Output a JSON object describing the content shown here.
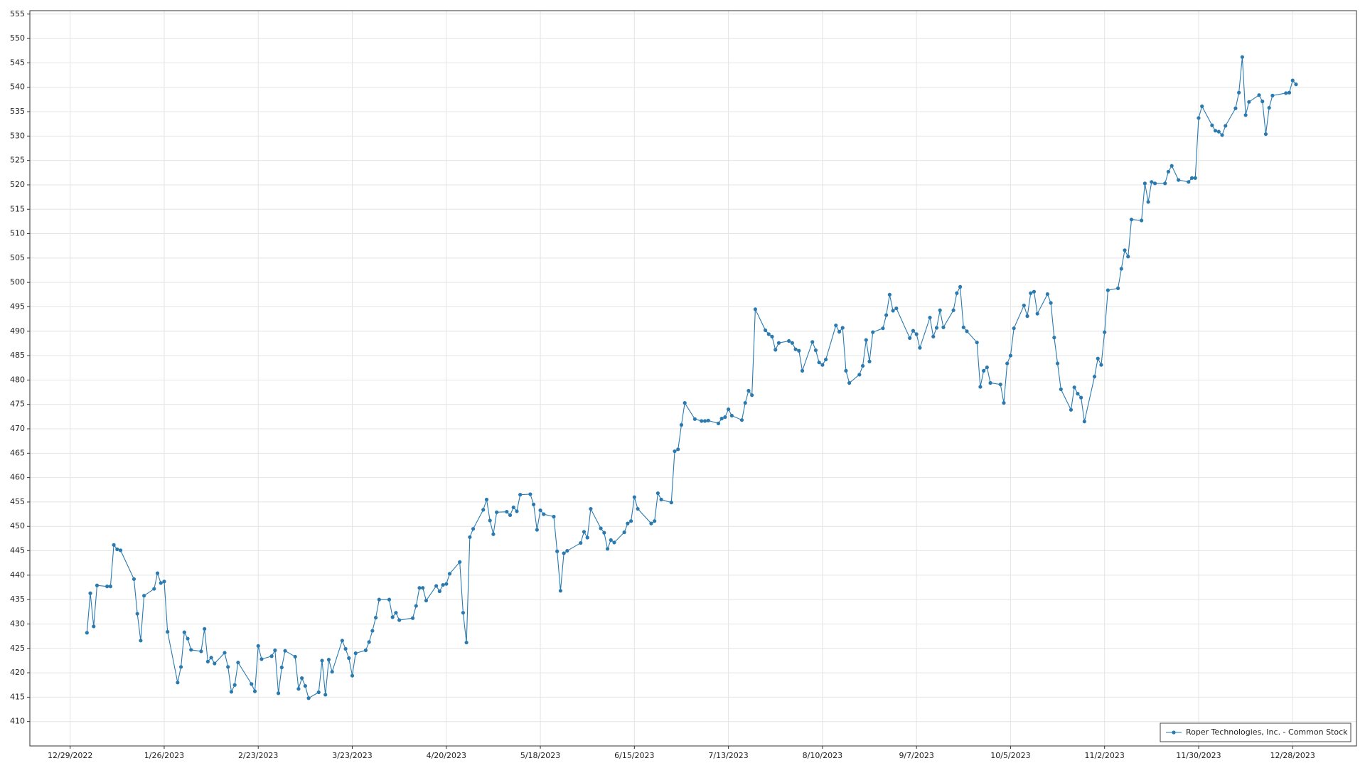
{
  "chart_data": {
    "type": "line",
    "series": [
      {
        "name": "Roper Technologies, Inc. - Common Stock",
        "color": "#2a7ab0",
        "x": [
          "1/3/2023",
          "1/4/2023",
          "1/5/2023",
          "1/6/2023",
          "1/9/2023",
          "1/10/2023",
          "1/11/2023",
          "1/12/2023",
          "1/13/2023",
          "1/17/2023",
          "1/18/2023",
          "1/19/2023",
          "1/20/2023",
          "1/23/2023",
          "1/24/2023",
          "1/25/2023",
          "1/26/2023",
          "1/27/2023",
          "1/30/2023",
          "1/31/2023",
          "2/1/2023",
          "2/2/2023",
          "2/3/2023",
          "2/6/2023",
          "2/7/2023",
          "2/8/2023",
          "2/9/2023",
          "2/10/2023",
          "2/13/2023",
          "2/14/2023",
          "2/15/2023",
          "2/16/2023",
          "2/17/2023",
          "2/21/2023",
          "2/22/2023",
          "2/23/2023",
          "2/24/2023",
          "2/27/2023",
          "2/28/2023",
          "3/1/2023",
          "3/2/2023",
          "3/3/2023",
          "3/6/2023",
          "3/7/2023",
          "3/8/2023",
          "3/9/2023",
          "3/10/2023",
          "3/13/2023",
          "3/14/2023",
          "3/15/2023",
          "3/16/2023",
          "3/17/2023",
          "3/20/2023",
          "3/21/2023",
          "3/22/2023",
          "3/23/2023",
          "3/24/2023",
          "3/27/2023",
          "3/28/2023",
          "3/29/2023",
          "3/30/2023",
          "3/31/2023",
          "4/3/2023",
          "4/4/2023",
          "4/5/2023",
          "4/6/2023",
          "4/10/2023",
          "4/11/2023",
          "4/12/2023",
          "4/13/2023",
          "4/14/2023",
          "4/17/2023",
          "4/18/2023",
          "4/19/2023",
          "4/20/2023",
          "4/21/2023",
          "4/24/2023",
          "4/25/2023",
          "4/26/2023",
          "4/27/2023",
          "4/28/2023",
          "5/1/2023",
          "5/2/2023",
          "5/3/2023",
          "5/4/2023",
          "5/5/2023",
          "5/8/2023",
          "5/9/2023",
          "5/10/2023",
          "5/11/2023",
          "5/12/2023",
          "5/15/2023",
          "5/16/2023",
          "5/17/2023",
          "5/18/2023",
          "5/19/2023",
          "5/22/2023",
          "5/23/2023",
          "5/24/2023",
          "5/25/2023",
          "5/26/2023",
          "5/30/2023",
          "5/31/2023",
          "6/1/2023",
          "6/2/2023",
          "6/5/2023",
          "6/6/2023",
          "6/7/2023",
          "6/8/2023",
          "6/9/2023",
          "6/12/2023",
          "6/13/2023",
          "6/14/2023",
          "6/15/2023",
          "6/16/2023",
          "6/20/2023",
          "6/21/2023",
          "6/22/2023",
          "6/23/2023",
          "6/26/2023",
          "6/27/2023",
          "6/28/2023",
          "6/29/2023",
          "6/30/2023",
          "7/3/2023",
          "7/5/2023",
          "7/6/2023",
          "7/7/2023",
          "7/10/2023",
          "7/11/2023",
          "7/12/2023",
          "7/13/2023",
          "7/14/2023",
          "7/17/2023",
          "7/18/2023",
          "7/19/2023",
          "7/20/2023",
          "7/21/2023",
          "7/24/2023",
          "7/25/2023",
          "7/26/2023",
          "7/27/2023",
          "7/28/2023",
          "7/31/2023",
          "8/1/2023",
          "8/2/2023",
          "8/3/2023",
          "8/4/2023",
          "8/7/2023",
          "8/8/2023",
          "8/9/2023",
          "8/10/2023",
          "8/11/2023",
          "8/14/2023",
          "8/15/2023",
          "8/16/2023",
          "8/17/2023",
          "8/18/2023",
          "8/21/2023",
          "8/22/2023",
          "8/23/2023",
          "8/24/2023",
          "8/25/2023",
          "8/28/2023",
          "8/29/2023",
          "8/30/2023",
          "8/31/2023",
          "9/1/2023",
          "9/5/2023",
          "9/6/2023",
          "9/7/2023",
          "9/8/2023",
          "9/11/2023",
          "9/12/2023",
          "9/13/2023",
          "9/14/2023",
          "9/15/2023",
          "9/18/2023",
          "9/19/2023",
          "9/20/2023",
          "9/21/2023",
          "9/22/2023",
          "9/25/2023",
          "9/26/2023",
          "9/27/2023",
          "9/28/2023",
          "9/29/2023",
          "10/2/2023",
          "10/3/2023",
          "10/4/2023",
          "10/5/2023",
          "10/6/2023",
          "10/9/2023",
          "10/10/2023",
          "10/11/2023",
          "10/12/2023",
          "10/13/2023",
          "10/16/2023",
          "10/17/2023",
          "10/18/2023",
          "10/19/2023",
          "10/20/2023",
          "10/23/2023",
          "10/24/2023",
          "10/25/2023",
          "10/26/2023",
          "10/27/2023",
          "10/30/2023",
          "10/31/2023",
          "11/1/2023",
          "11/2/2023",
          "11/3/2023",
          "11/6/2023",
          "11/7/2023",
          "11/8/2023",
          "11/9/2023",
          "11/10/2023",
          "11/13/2023",
          "11/14/2023",
          "11/15/2023",
          "11/16/2023",
          "11/17/2023",
          "11/20/2023",
          "11/21/2023",
          "11/22/2023",
          "11/24/2023",
          "11/27/2023",
          "11/28/2023",
          "11/29/2023",
          "11/30/2023",
          "12/1/2023",
          "12/4/2023",
          "12/5/2023",
          "12/6/2023",
          "12/7/2023",
          "12/8/2023",
          "12/11/2023",
          "12/12/2023",
          "12/13/2023",
          "12/14/2023",
          "12/15/2023",
          "12/18/2023",
          "12/19/2023",
          "12/20/2023",
          "12/21/2023",
          "12/22/2023",
          "12/26/2023",
          "12/27/2023",
          "12/28/2023",
          "12/29/2023"
        ],
        "values": [
          428.2,
          436.3,
          429.5,
          437.9,
          437.7,
          437.7,
          446.2,
          445.3,
          445.1,
          439.2,
          432.1,
          426.6,
          435.8,
          437.2,
          440.4,
          438.4,
          438.7,
          428.4,
          418.0,
          421.2,
          428.3,
          427.0,
          424.7,
          424.4,
          429.0,
          422.3,
          423.1,
          421.9,
          424.1,
          421.2,
          416.1,
          417.5,
          422.1,
          417.7,
          416.2,
          425.5,
          422.8,
          423.4,
          424.6,
          415.8,
          421.1,
          424.5,
          423.3,
          416.7,
          418.9,
          417.3,
          414.8,
          416.0,
          422.5,
          415.5,
          422.7,
          420.2,
          426.6,
          424.9,
          423.0,
          419.4,
          424.0,
          424.6,
          426.3,
          428.6,
          431.3,
          435.0,
          435.0,
          431.4,
          432.3,
          430.8,
          431.2,
          433.7,
          437.4,
          437.4,
          434.8,
          437.8,
          436.7,
          438.0,
          438.2,
          440.3,
          442.7,
          432.3,
          426.2,
          447.8,
          449.5,
          453.4,
          455.5,
          451.2,
          448.4,
          452.9,
          453.0,
          452.3,
          453.9,
          453.1,
          456.5,
          456.6,
          454.5,
          449.3,
          453.3,
          452.5,
          452.0,
          444.9,
          436.8,
          444.5,
          445.0,
          446.6,
          448.9,
          447.7,
          453.6,
          449.6,
          448.7,
          445.4,
          447.2,
          446.7,
          448.8,
          450.6,
          451.1,
          456.0,
          453.6,
          450.6,
          451.1,
          456.8,
          455.5,
          454.9,
          465.4,
          465.8,
          470.8,
          475.3,
          472.0,
          471.6,
          471.6,
          471.7,
          471.1,
          472.1,
          472.4,
          474.0,
          472.7,
          471.8,
          475.3,
          477.8,
          476.9,
          494.5,
          490.2,
          489.4,
          488.9,
          486.2,
          487.6,
          488.0,
          487.6,
          486.3,
          486.0,
          481.9,
          487.8,
          486.1,
          483.6,
          483.1,
          484.2,
          491.2,
          489.9,
          490.7,
          481.9,
          479.4,
          481.1,
          482.9,
          488.2,
          483.8,
          489.8,
          490.6,
          493.3,
          497.5,
          494.2,
          494.7,
          488.6,
          490.1,
          489.4,
          486.6,
          492.8,
          488.9,
          490.7,
          494.3,
          490.8,
          494.3,
          497.8,
          499.1,
          490.8,
          490.0,
          487.7,
          478.6,
          481.9,
          482.6,
          479.4,
          479.1,
          475.3,
          483.4,
          485.0,
          490.6,
          495.3,
          493.1,
          497.8,
          498.1,
          493.6,
          497.6,
          495.8,
          488.7,
          483.4,
          478.1,
          473.9,
          478.5,
          477.2,
          476.4,
          471.5,
          480.7,
          484.4,
          483.1,
          489.8,
          498.4,
          498.8,
          502.8,
          506.6,
          505.3,
          512.9,
          512.7,
          520.3,
          516.5,
          520.6,
          520.3,
          520.3,
          522.7,
          523.9,
          521.0,
          520.6,
          521.4,
          521.4,
          533.7,
          536.1,
          532.2,
          531.1,
          530.9,
          530.2,
          532.1,
          535.7,
          538.9,
          546.2,
          534.3,
          537.0,
          538.4,
          537.1,
          530.4,
          535.8,
          538.3,
          538.8,
          538.9,
          541.4,
          540.6
        ]
      }
    ],
    "xlim": [
      "12/17/2022",
      "1/16/2024"
    ],
    "xticks": [
      "12/29/2022",
      "1/26/2023",
      "2/23/2023",
      "3/23/2023",
      "4/20/2023",
      "5/18/2023",
      "6/15/2023",
      "7/13/2023",
      "8/10/2023",
      "9/7/2023",
      "10/5/2023",
      "11/2/2023",
      "11/30/2023",
      "12/28/2023"
    ],
    "ylim": [
      405,
      555.7
    ],
    "yticks": [
      410,
      415,
      420,
      425,
      430,
      435,
      440,
      445,
      450,
      455,
      460,
      465,
      470,
      475,
      480,
      485,
      490,
      495,
      500,
      505,
      510,
      515,
      520,
      525,
      530,
      535,
      540,
      545,
      550,
      555
    ],
    "grid": true,
    "markers": true,
    "legend": "lower right"
  }
}
